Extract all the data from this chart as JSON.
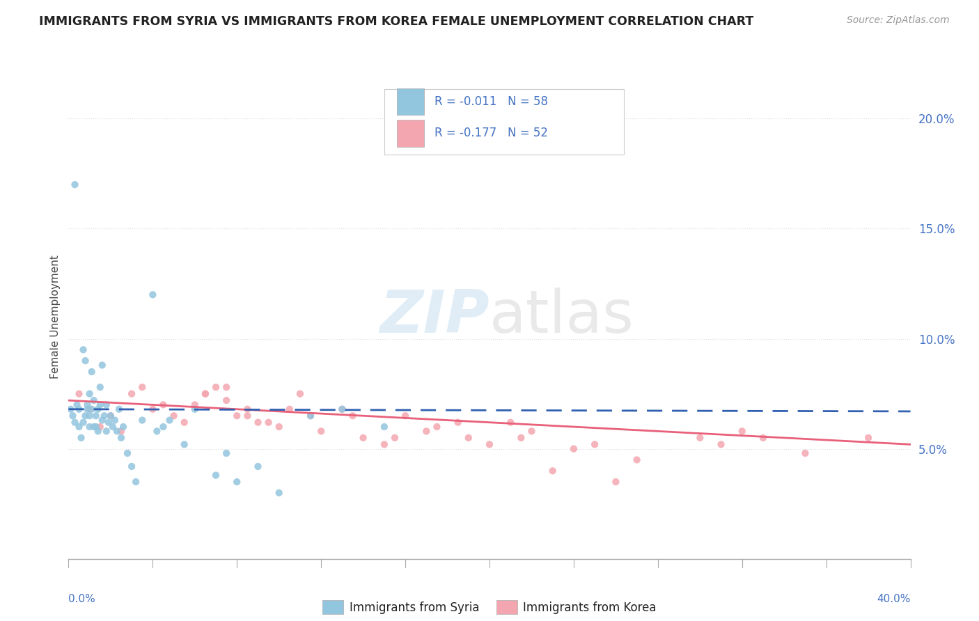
{
  "title": "IMMIGRANTS FROM SYRIA VS IMMIGRANTS FROM KOREA FEMALE UNEMPLOYMENT CORRELATION CHART",
  "source": "Source: ZipAtlas.com",
  "ylabel": "Female Unemployment",
  "right_yticks": [
    "5.0%",
    "10.0%",
    "15.0%",
    "20.0%"
  ],
  "right_ytick_vals": [
    0.05,
    0.1,
    0.15,
    0.2
  ],
  "xlim": [
    0.0,
    0.4
  ],
  "ylim": [
    0.0,
    0.22
  ],
  "syria_color": "#92C5DE",
  "korea_color": "#F4A6B0",
  "syria_line_color": "#3060B0",
  "korea_line_color": "#E8607A",
  "legend_syria_label_r": "R = -0.011",
  "legend_syria_label_n": "N = 58",
  "legend_korea_label_r": "R = -0.177",
  "legend_korea_label_n": "N = 52",
  "legend_rn_color": "#4472C4",
  "watermark_zip": "ZIP",
  "watermark_atlas": "atlas",
  "title_color": "#222222",
  "axis_label_color": "#444444",
  "tick_color": "#4472C4",
  "background_color": "#ffffff",
  "grid_color": "#dddddd",
  "bottom_legend_label_syria": "Immigrants from Syria",
  "bottom_legend_label_korea": "Immigrants from Korea",
  "syria_x": [
    0.001,
    0.002,
    0.003,
    0.004,
    0.005,
    0.005,
    0.006,
    0.007,
    0.007,
    0.008,
    0.008,
    0.009,
    0.009,
    0.01,
    0.01,
    0.01,
    0.011,
    0.011,
    0.012,
    0.012,
    0.013,
    0.013,
    0.014,
    0.014,
    0.015,
    0.015,
    0.016,
    0.016,
    0.017,
    0.018,
    0.018,
    0.019,
    0.02,
    0.021,
    0.022,
    0.023,
    0.024,
    0.025,
    0.026,
    0.028,
    0.03,
    0.032,
    0.035,
    0.04,
    0.042,
    0.045,
    0.048,
    0.055,
    0.06,
    0.07,
    0.075,
    0.08,
    0.09,
    0.1,
    0.115,
    0.13,
    0.15,
    0.003
  ],
  "syria_y": [
    0.068,
    0.065,
    0.062,
    0.07,
    0.06,
    0.068,
    0.055,
    0.062,
    0.095,
    0.065,
    0.09,
    0.07,
    0.068,
    0.06,
    0.065,
    0.075,
    0.085,
    0.068,
    0.06,
    0.072,
    0.065,
    0.06,
    0.068,
    0.058,
    0.07,
    0.078,
    0.063,
    0.088,
    0.065,
    0.07,
    0.058,
    0.062,
    0.065,
    0.06,
    0.063,
    0.058,
    0.068,
    0.055,
    0.06,
    0.048,
    0.042,
    0.035,
    0.063,
    0.12,
    0.058,
    0.06,
    0.063,
    0.052,
    0.068,
    0.038,
    0.048,
    0.035,
    0.042,
    0.03,
    0.065,
    0.068,
    0.06,
    0.17
  ],
  "korea_x": [
    0.005,
    0.01,
    0.015,
    0.02,
    0.025,
    0.03,
    0.035,
    0.04,
    0.045,
    0.05,
    0.055,
    0.06,
    0.065,
    0.07,
    0.075,
    0.08,
    0.085,
    0.09,
    0.1,
    0.105,
    0.11,
    0.115,
    0.12,
    0.13,
    0.135,
    0.14,
    0.15,
    0.155,
    0.16,
    0.17,
    0.175,
    0.185,
    0.19,
    0.2,
    0.21,
    0.215,
    0.22,
    0.23,
    0.24,
    0.25,
    0.26,
    0.27,
    0.3,
    0.31,
    0.32,
    0.33,
    0.35,
    0.38,
    0.065,
    0.075,
    0.085,
    0.095
  ],
  "korea_y": [
    0.075,
    0.068,
    0.06,
    0.065,
    0.058,
    0.075,
    0.078,
    0.068,
    0.07,
    0.065,
    0.062,
    0.07,
    0.075,
    0.078,
    0.072,
    0.065,
    0.068,
    0.062,
    0.06,
    0.068,
    0.075,
    0.065,
    0.058,
    0.068,
    0.065,
    0.055,
    0.052,
    0.055,
    0.065,
    0.058,
    0.06,
    0.062,
    0.055,
    0.052,
    0.062,
    0.055,
    0.058,
    0.04,
    0.05,
    0.052,
    0.035,
    0.045,
    0.055,
    0.052,
    0.058,
    0.055,
    0.048,
    0.055,
    0.075,
    0.078,
    0.065,
    0.062
  ],
  "syria_trend_x": [
    0.0,
    0.4
  ],
  "syria_trend_y_start": 0.068,
  "syria_trend_y_end": 0.067,
  "korea_trend_x": [
    0.0,
    0.4
  ],
  "korea_trend_y_start": 0.072,
  "korea_trend_y_end": 0.052
}
